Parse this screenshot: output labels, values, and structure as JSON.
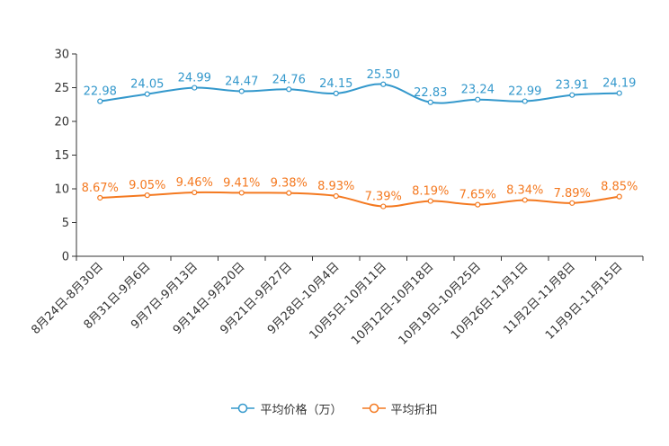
{
  "chart_data": {
    "type": "line",
    "title": "",
    "xlabel": "",
    "ylabel": "",
    "ylim": [
      0,
      30
    ],
    "yticks": [
      0,
      5,
      10,
      15,
      20,
      25,
      30
    ],
    "grid": false,
    "legend_position": "bottom-center",
    "categories": [
      "8月24日-8月30日",
      "8月31日-9月6日",
      "9月7日-9月13日",
      "9月14日-9月20日",
      "9月21日-9月27日",
      "9月28日-10月4日",
      "10月5日-10月11日",
      "10月12日-10月18日",
      "10月19日-10月25日",
      "10月26日-11月1日",
      "11月2日-11月8日",
      "11月9日-11月15日"
    ],
    "series": [
      {
        "name": "平均价格（万）",
        "color": "#3398cc",
        "values": [
          22.98,
          24.05,
          24.99,
          24.47,
          24.76,
          24.15,
          25.5,
          22.83,
          23.24,
          22.99,
          23.91,
          24.19
        ],
        "labels": [
          "22.98",
          "24.05",
          "24.99",
          "24.47",
          "24.76",
          "24.15",
          "25.50",
          "22.83",
          "23.24",
          "22.99",
          "23.91",
          "24.19"
        ]
      },
      {
        "name": "平均折扣",
        "color": "#f47920",
        "values": [
          8.67,
          9.05,
          9.46,
          9.41,
          9.38,
          8.93,
          7.39,
          8.19,
          7.65,
          8.34,
          7.89,
          8.85
        ],
        "labels": [
          "8.67%",
          "9.05%",
          "9.46%",
          "9.41%",
          "9.38%",
          "8.93%",
          "7.39%",
          "8.19%",
          "7.65%",
          "8.34%",
          "7.89%",
          "8.85%"
        ]
      }
    ]
  }
}
